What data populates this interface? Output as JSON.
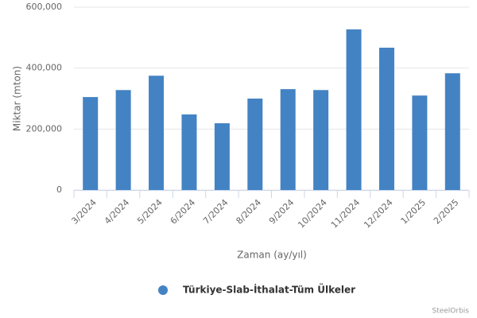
{
  "chart_data": {
    "type": "bar",
    "x_axis_label": "Zaman (ay/yıl)",
    "y_axis_label": "Miktar (mton)",
    "categories": [
      "3/2024",
      "4/2024",
      "5/2024",
      "6/2024",
      "7/2024",
      "8/2024",
      "9/2024",
      "10/2024",
      "11/2024",
      "12/2024",
      "1/2025",
      "2/2025"
    ],
    "series": [
      {
        "name": "Türkiye-Slab-İthalat-Tüm Ülkeler",
        "color": "#4383c4",
        "values": [
          305000,
          328000,
          375000,
          248000,
          219000,
          300000,
          331000,
          328000,
          527000,
          467000,
          310000,
          383000
        ]
      }
    ],
    "ylim": [
      0,
      600000
    ],
    "yticks": [
      0,
      {
        "value": 200000,
        "label": "200,000"
      },
      {
        "value": 400000,
        "label": "400,000"
      },
      {
        "value": 600000,
        "label": "600,000"
      }
    ],
    "grid": true,
    "legend": "bottom",
    "credits": "SteelOrbis"
  }
}
